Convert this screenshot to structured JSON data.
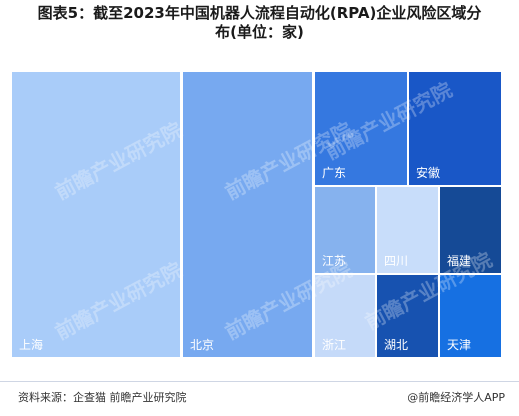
{
  "title_line1": "图表5：截至2023年中国机器人流程自动化(RPA)企业风险区域分",
  "title_line2": "布(单位：家)",
  "source": "资料来源：企查猫 前瞻产业研究院",
  "brand": "@前瞻经济学人APP",
  "watermark": "前瞻产业研究院",
  "chart_data": {
    "type": "treemap",
    "title": "图表5：截至2023年中国机器人流程自动化(RPA)企业风险区域分布(单位：家)",
    "unit": "家",
    "items": [
      {
        "name": "上海",
        "color": "#a9ccf9"
      },
      {
        "name": "北京",
        "color": "#77a9f0"
      },
      {
        "name": "广东",
        "color": "#3578e0"
      },
      {
        "name": "安徽",
        "color": "#1957c7"
      },
      {
        "name": "江苏",
        "color": "#86b2ee"
      },
      {
        "name": "四川",
        "color": "#c8ddfa"
      },
      {
        "name": "福建",
        "color": "#154a96"
      },
      {
        "name": "浙江",
        "color": "#c5daf9"
      },
      {
        "name": "湖北",
        "color": "#1752b0"
      },
      {
        "name": "天津",
        "color": "#1670e2"
      }
    ]
  }
}
